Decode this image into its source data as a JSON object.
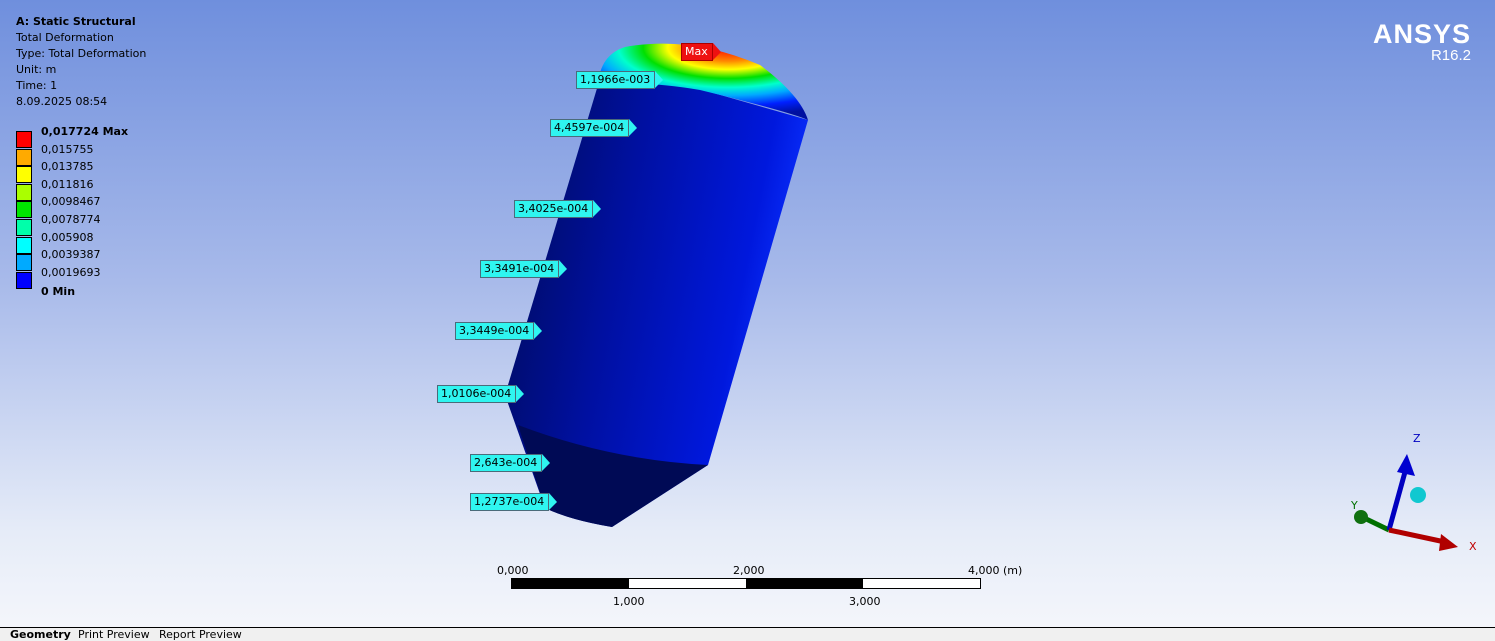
{
  "info": {
    "title": "A: Static Structural",
    "result": "Total Deformation",
    "type": "Type: Total Deformation",
    "unit": "Unit: m",
    "time": "Time: 1",
    "timestamp": "8.09.2025 08:54"
  },
  "legend": [
    {
      "label": "0,017724 Max",
      "color": "#ff0000",
      "bold": true
    },
    {
      "label": "0,015755",
      "color": "#ffaa00"
    },
    {
      "label": "0,013785",
      "color": "#ffff00"
    },
    {
      "label": "0,011816",
      "color": "#aaff00"
    },
    {
      "label": "0,0098467",
      "color": "#00e600"
    },
    {
      "label": "0,0078774",
      "color": "#00ffaa"
    },
    {
      "label": "0,005908",
      "color": "#00ffff"
    },
    {
      "label": "0,0039387",
      "color": "#00aaff"
    },
    {
      "label": "0,0019693",
      "color": "#0000ff"
    },
    {
      "label": "0 Min",
      "bold": true
    }
  ],
  "logo": {
    "name": "ANSYS",
    "version": "R16.2"
  },
  "probes": [
    "Max",
    "1,1966e-003",
    "4,4597e-004",
    "3,4025e-004",
    "3,3491e-004",
    "3,3449e-004",
    "1,0106e-004",
    "2,643e-004",
    "1,2737e-004"
  ],
  "scale_bar": {
    "top": [
      "0,000",
      "2,000",
      "4,000 (m)"
    ],
    "bottom": [
      "1,000",
      "3,000"
    ]
  },
  "triad": {
    "x": "X",
    "y": "Y",
    "z": "Z",
    "colors": {
      "x": "#c00000",
      "y": "#007000",
      "z": "#0000c0"
    }
  },
  "tabs": [
    "Geometry",
    "Print Preview",
    "Report Preview"
  ],
  "active_tab": "Geometry"
}
